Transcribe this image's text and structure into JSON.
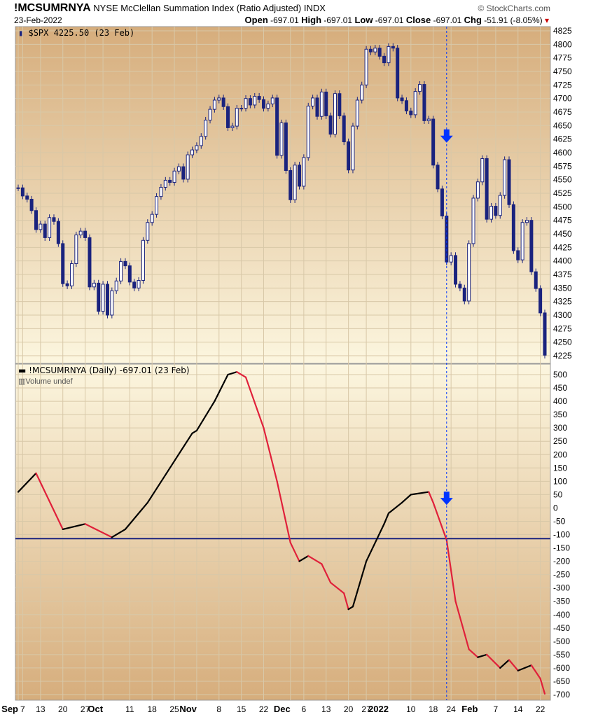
{
  "header": {
    "symbol": "!MCSUMRNYA",
    "description": "NYSE McClellan Summation Index (Ratio Adjusted)",
    "exchange": "INDX",
    "brand": "© StockCharts.com",
    "date": "23-Feb-2022",
    "open_label": "Open",
    "open": "-697.01",
    "high_label": "High",
    "high": "-697.01",
    "low_label": "Low",
    "low": "-697.01",
    "close_label": "Close",
    "close": "-697.01",
    "chg_label": "Chg",
    "chg": "-51.91 (-8.05%)"
  },
  "chart_data": [
    {
      "type": "candlestick",
      "legend": "$SPX 4225.50 (23 Feb)",
      "ylim": [
        4225,
        4825
      ],
      "yticks": [
        4225,
        4250,
        4275,
        4300,
        4325,
        4350,
        4375,
        4400,
        4425,
        4450,
        4475,
        4500,
        4525,
        4550,
        4575,
        4600,
        4625,
        4650,
        4675,
        4700,
        4725,
        4750,
        4775,
        4800,
        4825
      ],
      "up_color": "#ffffff",
      "down_color": "#1a237e",
      "dates": [
        "2021-09-03",
        "2021-09-07",
        "2021-09-08",
        "2021-09-09",
        "2021-09-10",
        "2021-09-13",
        "2021-09-14",
        "2021-09-15",
        "2021-09-16",
        "2021-09-17",
        "2021-09-20",
        "2021-09-21",
        "2021-09-22",
        "2021-09-23",
        "2021-09-24",
        "2021-09-27",
        "2021-09-28",
        "2021-09-29",
        "2021-09-30",
        "2021-10-01",
        "2021-10-04",
        "2021-10-05",
        "2021-10-06",
        "2021-10-07",
        "2021-10-08",
        "2021-10-11",
        "2021-10-12",
        "2021-10-13",
        "2021-10-14",
        "2021-10-15",
        "2021-10-18",
        "2021-10-19",
        "2021-10-20",
        "2021-10-21",
        "2021-10-22",
        "2021-10-25",
        "2021-10-26",
        "2021-10-27",
        "2021-10-28",
        "2021-10-29",
        "2021-11-01",
        "2021-11-02",
        "2021-11-03",
        "2021-11-04",
        "2021-11-05",
        "2021-11-08",
        "2021-11-09",
        "2021-11-10",
        "2021-11-11",
        "2021-11-12",
        "2021-11-15",
        "2021-11-16",
        "2021-11-17",
        "2021-11-18",
        "2021-11-19",
        "2021-11-22",
        "2021-11-23",
        "2021-11-24",
        "2021-11-26",
        "2021-11-29",
        "2021-11-30",
        "2021-12-01",
        "2021-12-02",
        "2021-12-03",
        "2021-12-06",
        "2021-12-07",
        "2021-12-08",
        "2021-12-09",
        "2021-12-10",
        "2021-12-13",
        "2021-12-14",
        "2021-12-15",
        "2021-12-16",
        "2021-12-17",
        "2021-12-20",
        "2021-12-21",
        "2021-12-22",
        "2021-12-23",
        "2021-12-27",
        "2021-12-28",
        "2021-12-29",
        "2021-12-30",
        "2021-12-31",
        "2022-01-03",
        "2022-01-04",
        "2022-01-05",
        "2022-01-06",
        "2022-01-07",
        "2022-01-10",
        "2022-01-11",
        "2022-01-12",
        "2022-01-13",
        "2022-01-14",
        "2022-01-18",
        "2022-01-19",
        "2022-01-20",
        "2022-01-21",
        "2022-01-24",
        "2022-01-25",
        "2022-01-26",
        "2022-01-27",
        "2022-01-28",
        "2022-01-31",
        "2022-02-01",
        "2022-02-02",
        "2022-02-03",
        "2022-02-04",
        "2022-02-07",
        "2022-02-08",
        "2022-02-09",
        "2022-02-10",
        "2022-02-11",
        "2022-02-14",
        "2022-02-15",
        "2022-02-16",
        "2022-02-17",
        "2022-02-18",
        "2022-02-22",
        "2022-02-23"
      ],
      "close": [
        4535,
        4520,
        4514,
        4493,
        4458,
        4468,
        4443,
        4480,
        4473,
        4432,
        4358,
        4354,
        4395,
        4448,
        4455,
        4443,
        4352,
        4359,
        4307,
        4357,
        4300,
        4345,
        4363,
        4399,
        4391,
        4361,
        4350,
        4364,
        4438,
        4471,
        4486,
        4519,
        4536,
        4549,
        4545,
        4566,
        4574,
        4551,
        4596,
        4605,
        4613,
        4630,
        4660,
        4680,
        4697,
        4701,
        4685,
        4646,
        4649,
        4682,
        4682,
        4700,
        4688,
        4704,
        4698,
        4682,
        4690,
        4701,
        4595,
        4655,
        4567,
        4513,
        4577,
        4538,
        4591,
        4686,
        4701,
        4667,
        4712,
        4668,
        4634,
        4709,
        4668,
        4620,
        4568,
        4649,
        4697,
        4725,
        4791,
        4786,
        4793,
        4778,
        4766,
        4796,
        4793,
        4701,
        4696,
        4677,
        4670,
        4713,
        4726,
        4659,
        4662,
        4577,
        4533,
        4483,
        4398,
        4410,
        4357,
        4350,
        4326,
        4432,
        4516,
        4546,
        4589,
        4477,
        4501,
        4484,
        4521,
        4587,
        4504,
        4419,
        4402,
        4471,
        4475,
        4380,
        4349,
        4304,
        4226
      ]
    },
    {
      "type": "line",
      "legend": "!MCSUMRNYA (Daily) -697.01 (23 Feb)",
      "sublegend": "Volume undef",
      "ylim": [
        -700,
        500
      ],
      "yticks": [
        500,
        450,
        400,
        350,
        300,
        250,
        200,
        150,
        100,
        50,
        0,
        -50,
        -100,
        -150,
        -200,
        -250,
        -300,
        -350,
        -400,
        -450,
        -500,
        -550,
        -600,
        -650,
        -700
      ],
      "up_color": "#000000",
      "down_color": "#e0203a",
      "reference_line": -115,
      "reference_color": "#1a237e",
      "points": [
        [
          "2021-09-03",
          60
        ],
        [
          "2021-09-10",
          130
        ],
        [
          "2021-09-20",
          -80
        ],
        [
          "2021-09-27",
          -60
        ],
        [
          "2021-10-05",
          -110
        ],
        [
          "2021-10-08",
          -80
        ],
        [
          "2021-10-15",
          20
        ],
        [
          "2021-10-22",
          150
        ],
        [
          "2021-10-29",
          280
        ],
        [
          "2021-11-01",
          290
        ],
        [
          "2021-11-05",
          400
        ],
        [
          "2021-11-10",
          500
        ],
        [
          "2021-11-12",
          510
        ],
        [
          "2021-11-16",
          490
        ],
        [
          "2021-11-22",
          300
        ],
        [
          "2021-11-26",
          100
        ],
        [
          "2021-12-01",
          -130
        ],
        [
          "2021-12-03",
          -200
        ],
        [
          "2021-12-07",
          -180
        ],
        [
          "2021-12-10",
          -210
        ],
        [
          "2021-12-14",
          -280
        ],
        [
          "2021-12-17",
          -320
        ],
        [
          "2021-12-20",
          -380
        ],
        [
          "2021-12-21",
          -370
        ],
        [
          "2021-12-27",
          -200
        ],
        [
          "2021-12-31",
          -60
        ],
        [
          "2022-01-03",
          -20
        ],
        [
          "2022-01-06",
          20
        ],
        [
          "2022-01-10",
          50
        ],
        [
          "2022-01-14",
          60
        ],
        [
          "2022-01-18",
          20
        ],
        [
          "2022-01-21",
          -120
        ],
        [
          "2022-01-25",
          -350
        ],
        [
          "2022-01-28",
          -530
        ],
        [
          "2022-02-01",
          -560
        ],
        [
          "2022-02-03",
          -550
        ],
        [
          "2022-02-08",
          -600
        ],
        [
          "2022-02-10",
          -570
        ],
        [
          "2022-02-14",
          -610
        ],
        [
          "2022-02-17",
          -590
        ],
        [
          "2022-02-22",
          -640
        ],
        [
          "2022-02-23",
          -697
        ]
      ]
    }
  ],
  "marker": {
    "date": "2022-01-21",
    "color": "#0033ff"
  },
  "xticks": [
    {
      "t": "Sep",
      "d": "2021-09-03",
      "b": true
    },
    {
      "t": "7",
      "d": "2021-09-07"
    },
    {
      "t": "13",
      "d": "2021-09-13"
    },
    {
      "t": "20",
      "d": "2021-09-20"
    },
    {
      "t": "27",
      "d": "2021-09-27"
    },
    {
      "t": "Oct",
      "d": "2021-10-01",
      "b": true
    },
    {
      "t": "11",
      "d": "2021-10-11"
    },
    {
      "t": "18",
      "d": "2021-10-18"
    },
    {
      "t": "25",
      "d": "2021-10-25"
    },
    {
      "t": "Nov",
      "d": "2021-11-01",
      "b": true
    },
    {
      "t": "8",
      "d": "2021-11-08"
    },
    {
      "t": "15",
      "d": "2021-11-15"
    },
    {
      "t": "22",
      "d": "2021-11-22"
    },
    {
      "t": "Dec",
      "d": "2021-12-01",
      "b": true
    },
    {
      "t": "6",
      "d": "2021-12-06"
    },
    {
      "t": "13",
      "d": "2021-12-13"
    },
    {
      "t": "20",
      "d": "2021-12-20"
    },
    {
      "t": "27",
      "d": "2021-12-27"
    },
    {
      "t": "2022",
      "d": "2022-01-03",
      "b": true
    },
    {
      "t": "10",
      "d": "2022-01-10"
    },
    {
      "t": "18",
      "d": "2022-01-18"
    },
    {
      "t": "24",
      "d": "2022-01-24"
    },
    {
      "t": "Feb",
      "d": "2022-02-01",
      "b": true
    },
    {
      "t": "7",
      "d": "2022-02-07"
    },
    {
      "t": "14",
      "d": "2022-02-14"
    },
    {
      "t": "22",
      "d": "2022-02-22"
    }
  ]
}
